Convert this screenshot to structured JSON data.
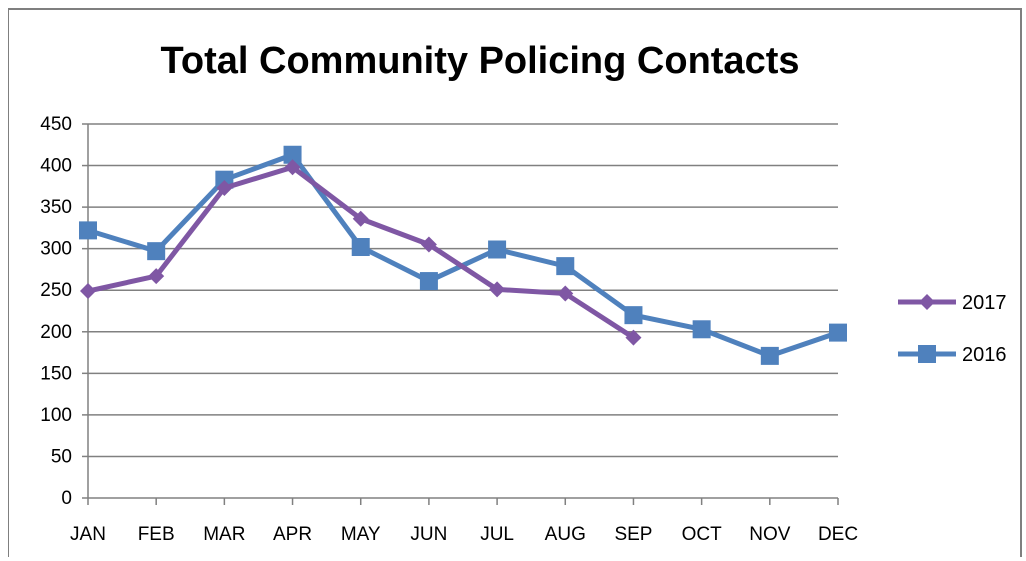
{
  "chart_data": {
    "type": "line",
    "title": "Total Community Policing Contacts",
    "xlabel": "",
    "ylabel": "",
    "categories": [
      "JAN",
      "FEB",
      "MAR",
      "APR",
      "MAY",
      "JUN",
      "JUL",
      "AUG",
      "SEP",
      "OCT",
      "NOV",
      "DEC"
    ],
    "ylim": [
      0,
      450
    ],
    "yticks": [
      0,
      50,
      100,
      150,
      200,
      250,
      300,
      350,
      400,
      450
    ],
    "grid": true,
    "legend_position": "right",
    "series": [
      {
        "name": "2017",
        "color": "#7f57a4",
        "marker": "diamond",
        "values": [
          249,
          267,
          373,
          398,
          336,
          305,
          251,
          246,
          193,
          null,
          null,
          null
        ]
      },
      {
        "name": "2016",
        "color": "#4f81bd",
        "marker": "square",
        "values": [
          322,
          297,
          383,
          413,
          302,
          261,
          299,
          279,
          220,
          203,
          171,
          199
        ]
      }
    ]
  }
}
